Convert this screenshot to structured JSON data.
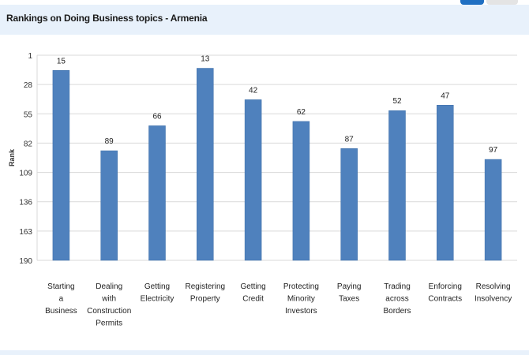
{
  "header": {
    "title": "Rankings on Doing Business topics - Armenia"
  },
  "colors": {
    "bar": "#4f81bd",
    "grid": "#d9d9d9",
    "header_band": "#e8f1fb"
  },
  "chart_data": {
    "type": "bar",
    "title": "Rankings on Doing Business topics - Armenia",
    "ylabel": "Rank",
    "xlabel": "",
    "ylim": [
      1,
      190
    ],
    "y_inverted": true,
    "y_ticks": [
      1,
      28,
      55,
      82,
      109,
      136,
      163,
      190
    ],
    "grid": true,
    "categories": [
      [
        "Starting",
        "a",
        "Business"
      ],
      [
        "Dealing",
        "with",
        "Construction",
        "Permits"
      ],
      [
        "Getting",
        "Electricity"
      ],
      [
        "Registering",
        "Property"
      ],
      [
        "Getting",
        "Credit"
      ],
      [
        "Protecting",
        "Minority",
        "Investors"
      ],
      [
        "Paying",
        "Taxes"
      ],
      [
        "Trading",
        "across",
        "Borders"
      ],
      [
        "Enforcing",
        "Contracts"
      ],
      [
        "Resolving",
        "Insolvency"
      ]
    ],
    "values": [
      15,
      89,
      66,
      13,
      42,
      62,
      87,
      52,
      47,
      97
    ]
  }
}
